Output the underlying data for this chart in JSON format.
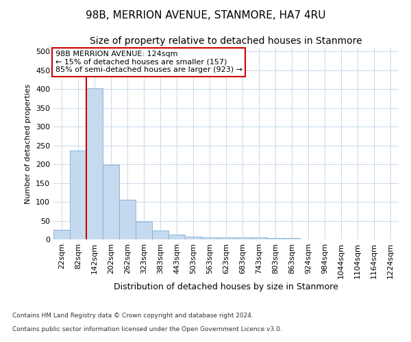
{
  "title": "98B, MERRION AVENUE, STANMORE, HA7 4RU",
  "subtitle": "Size of property relative to detached houses in Stanmore",
  "xlabel": "Distribution of detached houses by size in Stanmore",
  "ylabel": "Number of detached properties",
  "footer_line1": "Contains HM Land Registry data © Crown copyright and database right 2024.",
  "footer_line2": "Contains public sector information licensed under the Open Government Licence v3.0.",
  "bin_labels": [
    "22sqm",
    "82sqm",
    "142sqm",
    "202sqm",
    "262sqm",
    "323sqm",
    "383sqm",
    "443sqm",
    "503sqm",
    "563sqm",
    "623sqm",
    "683sqm",
    "743sqm",
    "803sqm",
    "863sqm",
    "924sqm",
    "984sqm",
    "1044sqm",
    "1104sqm",
    "1164sqm",
    "1224sqm"
  ],
  "bar_values": [
    25,
    237,
    403,
    198,
    105,
    48,
    24,
    12,
    8,
    5,
    5,
    5,
    6,
    3,
    3,
    0,
    0,
    0,
    0,
    0,
    0
  ],
  "bar_color": "#c5d9ef",
  "bar_edge_color": "#7bafd4",
  "grid_color": "#c8d8e8",
  "vline_color": "#cc0000",
  "annotation_line1": "98B MERRION AVENUE: 124sqm",
  "annotation_line2": "← 15% of detached houses are smaller (157)",
  "annotation_line3": "85% of semi-detached houses are larger (923) →",
  "annotation_box_color": "#ffffff",
  "annotation_box_edge": "#cc0000",
  "ylim": [
    0,
    510
  ],
  "yticks": [
    0,
    50,
    100,
    150,
    200,
    250,
    300,
    350,
    400,
    450,
    500
  ],
  "title_fontsize": 11,
  "subtitle_fontsize": 10,
  "xlabel_fontsize": 9,
  "ylabel_fontsize": 8,
  "tick_fontsize": 8,
  "annotation_fontsize": 8,
  "footer_fontsize": 6.5
}
